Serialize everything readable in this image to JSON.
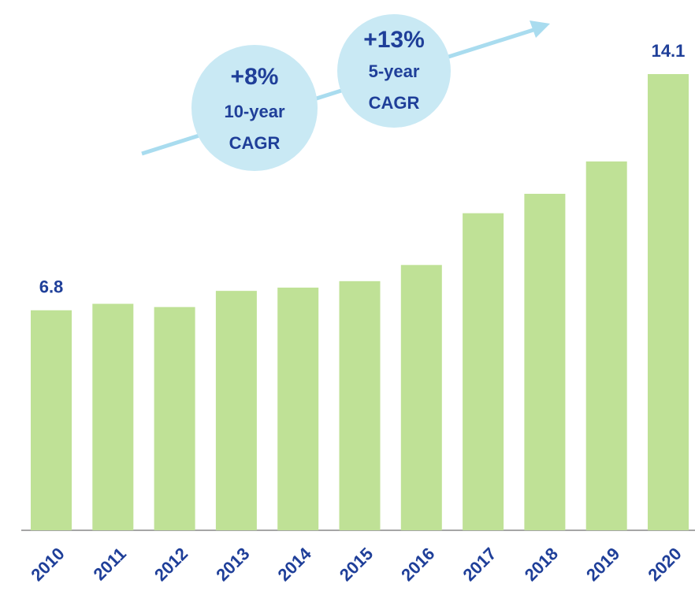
{
  "chart_data": {
    "type": "bar",
    "categories": [
      "2010",
      "2011",
      "2012",
      "2013",
      "2014",
      "2015",
      "2016",
      "2017",
      "2018",
      "2019",
      "2020"
    ],
    "values": [
      6.8,
      7.0,
      6.9,
      7.4,
      7.5,
      7.7,
      8.2,
      9.8,
      10.4,
      11.4,
      14.1
    ],
    "value_labels": [
      "6.8",
      null,
      null,
      null,
      null,
      null,
      null,
      null,
      null,
      null,
      "14.1"
    ],
    "color": "#bfe196",
    "ylim": [
      0,
      16
    ],
    "annotations": [
      {
        "lines": [
          "+8%",
          "10-year",
          "CAGR"
        ]
      },
      {
        "lines": [
          "+13%",
          "5-year",
          "CAGR"
        ]
      }
    ]
  }
}
